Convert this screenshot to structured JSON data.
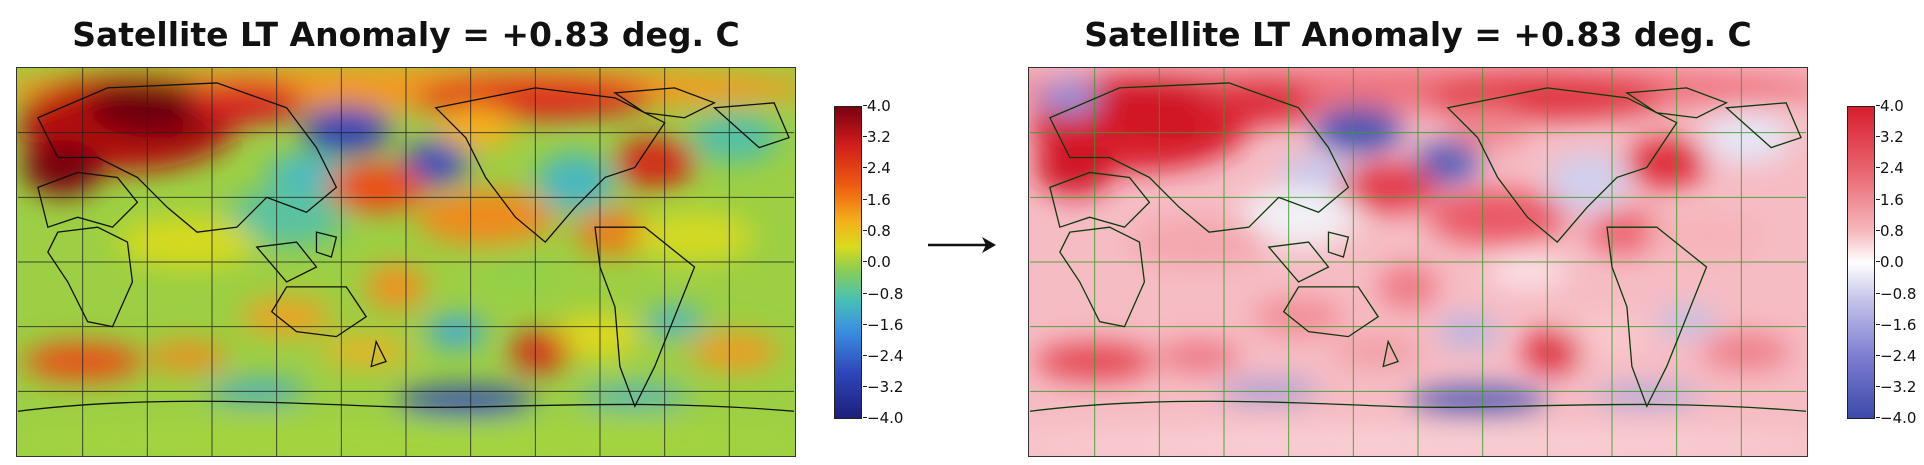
{
  "panels": [
    {
      "title": "Satellite LT Anomaly = +0.83 deg. C",
      "colormap": "jet-like (blue-cyan-green-yellow-red)",
      "grid_color": "#222222",
      "coastline_color": "#111111"
    },
    {
      "title": "Satellite LT Anomaly = +0.83 deg. C",
      "colormap": "diverging blue-white-red",
      "grid_color": "#3a9a2a",
      "coastline_color": "#0b3a0b"
    }
  ],
  "colorbar": {
    "ticks": [
      "4.0",
      "3.2",
      "2.4",
      "1.6",
      "0.8",
      "0.0",
      "−0.8",
      "−1.6",
      "−2.4",
      "−3.2",
      "−4.0"
    ],
    "range": [
      -4.0,
      4.0
    ]
  },
  "arrow_icon": "right-arrow-icon"
}
